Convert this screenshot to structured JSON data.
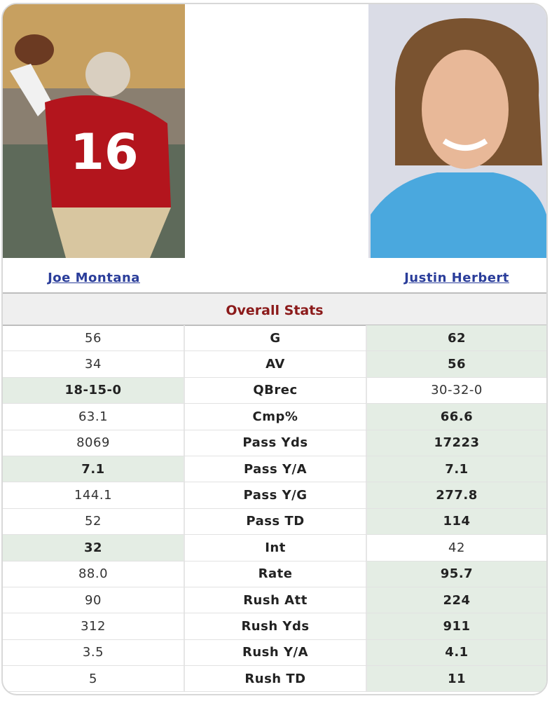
{
  "players": {
    "left": "Joe Montana",
    "right": "Justin Herbert"
  },
  "section_title": "Overall Stats",
  "rows": [
    {
      "stat": "G",
      "left": "56",
      "right": "62",
      "highlight": [
        "right"
      ]
    },
    {
      "stat": "AV",
      "left": "34",
      "right": "56",
      "highlight": [
        "right"
      ]
    },
    {
      "stat": "QBrec",
      "left": "18-15-0",
      "right": "30-32-0",
      "highlight": [
        "left"
      ]
    },
    {
      "stat": "Cmp%",
      "left": "63.1",
      "right": "66.6",
      "highlight": [
        "right"
      ]
    },
    {
      "stat": "Pass Yds",
      "left": "8069",
      "right": "17223",
      "highlight": [
        "right"
      ]
    },
    {
      "stat": "Pass Y/A",
      "left": "7.1",
      "right": "7.1",
      "highlight": [
        "left",
        "right"
      ]
    },
    {
      "stat": "Pass Y/G",
      "left": "144.1",
      "right": "277.8",
      "highlight": [
        "right"
      ]
    },
    {
      "stat": "Pass TD",
      "left": "52",
      "right": "114",
      "highlight": [
        "right"
      ]
    },
    {
      "stat": "Int",
      "left": "32",
      "right": "42",
      "highlight": [
        "left"
      ]
    },
    {
      "stat": "Rate",
      "left": "88.0",
      "right": "95.7",
      "highlight": [
        "right"
      ]
    },
    {
      "stat": "Rush Att",
      "left": "90",
      "right": "224",
      "highlight": [
        "right"
      ]
    },
    {
      "stat": "Rush Yds",
      "left": "312",
      "right": "911",
      "highlight": [
        "right"
      ]
    },
    {
      "stat": "Rush Y/A",
      "left": "3.5",
      "right": "4.1",
      "highlight": [
        "right"
      ]
    },
    {
      "stat": "Rush TD",
      "left": "5",
      "right": "11",
      "highlight": [
        "right"
      ]
    }
  ]
}
